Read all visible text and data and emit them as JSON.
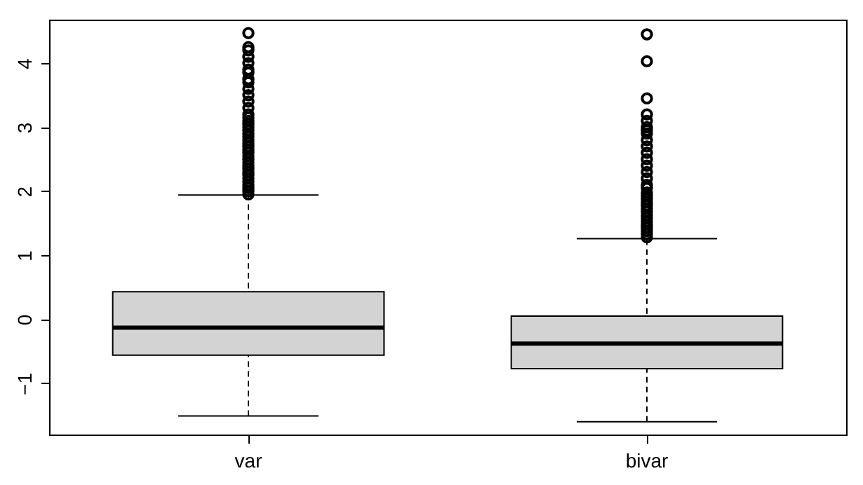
{
  "chart_data": {
    "type": "box",
    "categories": [
      "var",
      "bivar"
    ],
    "boxes": [
      {
        "low": -1.51,
        "q1": -0.56,
        "median": -0.13,
        "q3": 0.43,
        "high": 1.94,
        "outliers": [
          1.95,
          2.0,
          2.05,
          2.1,
          2.15,
          2.2,
          2.25,
          2.3,
          2.35,
          2.4,
          2.45,
          2.5,
          2.55,
          2.6,
          2.65,
          2.7,
          2.75,
          2.8,
          2.85,
          2.9,
          2.95,
          3.0,
          3.05,
          3.1,
          3.15,
          3.2,
          3.3,
          3.4,
          3.5,
          3.6,
          3.7,
          3.75,
          3.85,
          3.9,
          4.0,
          4.1,
          4.2,
          4.25,
          4.47
        ]
      },
      {
        "low": -1.6,
        "q1": -0.77,
        "median": -0.38,
        "q3": 0.05,
        "high": 1.26,
        "outliers": [
          1.28,
          1.33,
          1.38,
          1.43,
          1.48,
          1.53,
          1.58,
          1.63,
          1.68,
          1.73,
          1.78,
          1.83,
          1.88,
          1.93,
          1.98,
          2.05,
          2.1,
          2.2,
          2.3,
          2.4,
          2.5,
          2.6,
          2.7,
          2.8,
          2.9,
          2.95,
          3.0,
          3.1,
          3.2,
          3.45,
          4.03,
          4.45
        ]
      }
    ],
    "color": "#d3d3d3",
    "ylim": [
      -1.8,
      4.68
    ],
    "yticks": [
      -1,
      0,
      1,
      2,
      3,
      4
    ],
    "grid": false
  }
}
